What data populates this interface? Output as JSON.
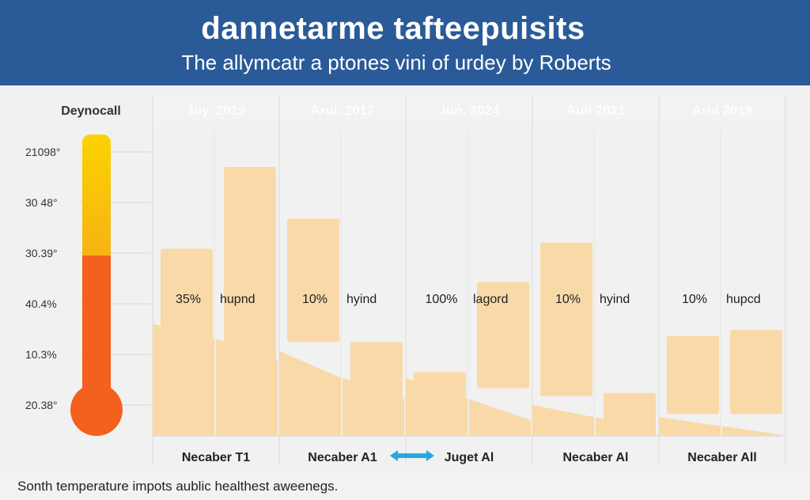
{
  "chart_data": {
    "type": "bar",
    "title": "dannetarme tafteepuisits",
    "subtitle": "The allymcatr a ptones vini of urdey by Roberts",
    "gauge": {
      "label": "Deynocall",
      "ticks": [
        "21098°",
        "30 48°",
        "30.39°",
        "40.4%",
        "10.3%",
        "20.38°"
      ],
      "colors": {
        "top": "#fbd300",
        "mid": "#f7b315",
        "bottom": "#f4601e"
      }
    },
    "groups": [
      {
        "header": "Juy. 2019",
        "footer": "Necaber T1",
        "value_label": "35%",
        "legend_label": "hupnd",
        "bars": [
          {
            "top": 3.1,
            "base": 0
          },
          {
            "top": 4.46,
            "base": 0
          },
          {
            "top": 1.85,
            "base": 0
          },
          {
            "top": 1.6,
            "base": 0
          }
        ]
      },
      {
        "header": "Arul. 2017",
        "footer": "Necaber A1",
        "value_label": "10%",
        "legend_label": "hyind",
        "bars": [
          {
            "top": 3.6,
            "base": 1.55
          },
          {
            "top": 1.55,
            "base": 0
          },
          {
            "top": 1.4,
            "base": 0
          },
          {
            "top": 0.95,
            "base": 0
          }
        ]
      },
      {
        "header": "Jun. 2024",
        "footer": "Juget Al",
        "value_label": "100%",
        "legend_label": "lagord",
        "bars": [
          {
            "top": 1.05,
            "base": 0
          },
          {
            "top": 2.55,
            "base": 0.78
          },
          {
            "top": 0.95,
            "base": 0
          },
          {
            "top": 0.6,
            "base": 0
          }
        ]
      },
      {
        "header": "Aull 2021",
        "footer": "Necaber Al",
        "value_label": "10%",
        "legend_label": "hyind",
        "bars": [
          {
            "top": 3.2,
            "base": 0.65
          },
          {
            "top": 0.7,
            "base": 0
          },
          {
            "top": 0.5,
            "base": 0
          },
          {
            "top": 0.3,
            "base": 0
          }
        ]
      },
      {
        "header": "Arul 2019",
        "footer": "Necaber All",
        "value_label": "10%",
        "legend_label": "hupcd",
        "bars": [
          {
            "top": 1.65,
            "base": 0.35
          },
          {
            "top": 1.75,
            "base": 0.35
          },
          {
            "top": 0.3,
            "base": 0
          },
          {
            "top": 0.15,
            "base": 0
          }
        ]
      }
    ],
    "ylim": [
      0,
      5
    ],
    "bar_color": "#f9d9a8",
    "grid": true,
    "arrow_color": "#2aa7df"
  },
  "footer_note": "Sonth temperature impots aublic healthest aweenegs."
}
